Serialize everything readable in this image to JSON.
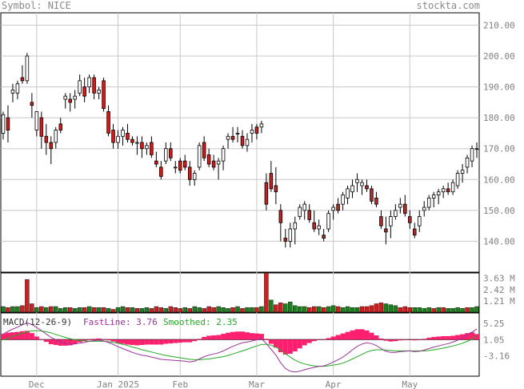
{
  "header": {
    "symbol_label": "Symbol: NICE",
    "brand": "stockta.com"
  },
  "colors": {
    "up_candle": "#ffffff",
    "down_candle": "#cc1f1f",
    "volume_up": "#1e7f1e",
    "volume_down": "#cc1f1f",
    "macd_hist": "#ff1f6f",
    "fast_line": "#993399",
    "smoothed_line": "#22aa22",
    "grid": "#c8c8c8",
    "text_gray": "#808080"
  },
  "chart_data": [
    {
      "type": "candlestick",
      "panel": "price",
      "x_tick_labels": [
        "Dec",
        "Jan 2025",
        "Feb",
        "Mar",
        "Apr",
        "May"
      ],
      "x_tick_positions": [
        7,
        24,
        37,
        53,
        69,
        85
      ],
      "y_tick_labels": [
        "210.00",
        "200.00",
        "190.00",
        "180.00",
        "170.00",
        "160.00",
        "150.00",
        "140.00"
      ],
      "ylim": [
        130,
        214
      ],
      "candles": [
        [
          175,
          182,
          173,
          181
        ],
        [
          180,
          184,
          172,
          176
        ],
        [
          188,
          191,
          185,
          189
        ],
        [
          188,
          192,
          186,
          191
        ],
        [
          193,
          197,
          191,
          192
        ],
        [
          192,
          201,
          191,
          200
        ],
        [
          185,
          188,
          180,
          184
        ],
        [
          176,
          182,
          174,
          182
        ],
        [
          180,
          182,
          170,
          174
        ],
        [
          174,
          178,
          168,
          172
        ],
        [
          172,
          174,
          165,
          170
        ],
        [
          172,
          177,
          170,
          176
        ],
        [
          178,
          180,
          175,
          176
        ],
        [
          186,
          188,
          183,
          187
        ],
        [
          186,
          188,
          182,
          185
        ],
        [
          186,
          189,
          183,
          187
        ],
        [
          188,
          194,
          187,
          192
        ],
        [
          190,
          193,
          185,
          187
        ],
        [
          190,
          194,
          188,
          193
        ],
        [
          193,
          194,
          186,
          188
        ],
        [
          188,
          190,
          186,
          189
        ],
        [
          192,
          193,
          182,
          183
        ],
        [
          182,
          184,
          174,
          175
        ],
        [
          176,
          178,
          170,
          172
        ],
        [
          172,
          176,
          170,
          174
        ],
        [
          174,
          177,
          171,
          176
        ],
        [
          175,
          178,
          172,
          173
        ],
        [
          173,
          174,
          171,
          172
        ],
        [
          172,
          174,
          168,
          172
        ],
        [
          172,
          174,
          167,
          170
        ],
        [
          170,
          172,
          168,
          171
        ],
        [
          172,
          174,
          167,
          168
        ],
        [
          166,
          169,
          164,
          165
        ],
        [
          164,
          166,
          160,
          161
        ],
        [
          166,
          172,
          165,
          170
        ],
        [
          170,
          172,
          166,
          167
        ],
        [
          164,
          166,
          162,
          164
        ],
        [
          166,
          167,
          162,
          163
        ],
        [
          166,
          168,
          163,
          164
        ],
        [
          164,
          166,
          158,
          160
        ],
        [
          160,
          163,
          158,
          162
        ],
        [
          164,
          172,
          163,
          171
        ],
        [
          172,
          174,
          166,
          167
        ],
        [
          168,
          170,
          164,
          165
        ],
        [
          166,
          168,
          163,
          164
        ],
        [
          165,
          167,
          160,
          166
        ],
        [
          166,
          171,
          163,
          170
        ],
        [
          173,
          175,
          170,
          174
        ],
        [
          174,
          177,
          172,
          173
        ],
        [
          175,
          177,
          172,
          175
        ],
        [
          174,
          176,
          170,
          171
        ],
        [
          171,
          175,
          169,
          173
        ],
        [
          175,
          178,
          172,
          176
        ],
        [
          177,
          178,
          173,
          175
        ],
        [
          177,
          179,
          175,
          178
        ],
        [
          159,
          162,
          150,
          152
        ],
        [
          162,
          166,
          156,
          157
        ],
        [
          158,
          164,
          152,
          156
        ],
        [
          150,
          152,
          140,
          146
        ],
        [
          141,
          144,
          138,
          140
        ],
        [
          140,
          146,
          138,
          144
        ],
        [
          144,
          148,
          139,
          146
        ],
        [
          148,
          152,
          147,
          151
        ],
        [
          150,
          153,
          147,
          152
        ],
        [
          150,
          152,
          146,
          147
        ],
        [
          146,
          150,
          143,
          144
        ],
        [
          144,
          147,
          142,
          145
        ],
        [
          142,
          144,
          140,
          141
        ],
        [
          144,
          150,
          143,
          149
        ],
        [
          150,
          152,
          147,
          151
        ],
        [
          152,
          154,
          149,
          150
        ],
        [
          152,
          156,
          150,
          155
        ],
        [
          154,
          158,
          152,
          157
        ],
        [
          156,
          160,
          154,
          158
        ],
        [
          159,
          162,
          156,
          160
        ],
        [
          158,
          160,
          155,
          159
        ],
        [
          158,
          160,
          156,
          157
        ],
        [
          157,
          158,
          152,
          153
        ],
        [
          154,
          156,
          151,
          152
        ],
        [
          148,
          150,
          144,
          145
        ],
        [
          144,
          148,
          139,
          143
        ],
        [
          145,
          150,
          141,
          148
        ],
        [
          148,
          152,
          147,
          150
        ],
        [
          151,
          154,
          149,
          152
        ],
        [
          152,
          155,
          148,
          149
        ],
        [
          148,
          150,
          144,
          146
        ],
        [
          144,
          146,
          141,
          142
        ],
        [
          145,
          150,
          143,
          148
        ],
        [
          150,
          153,
          148,
          151
        ],
        [
          151,
          155,
          150,
          154
        ],
        [
          154,
          156,
          151,
          155
        ],
        [
          155,
          157,
          152,
          156
        ],
        [
          156,
          158,
          154,
          157
        ],
        [
          157,
          159,
          155,
          156
        ],
        [
          156,
          160,
          155,
          159
        ],
        [
          158,
          163,
          157,
          162
        ],
        [
          162,
          165,
          159,
          163
        ],
        [
          164,
          168,
          162,
          167
        ],
        [
          166,
          171,
          164,
          170
        ],
        [
          170,
          172,
          167,
          170
        ]
      ]
    },
    {
      "type": "bar",
      "panel": "volume",
      "y_tick_labels": [
        "3.63 M",
        "2.42 M",
        "1.21 M"
      ],
      "ylim": [
        0,
        4.2
      ],
      "values": [
        0.6,
        0.5,
        0.6,
        0.6,
        0.7,
        3.5,
        0.9,
        0.5,
        0.6,
        0.5,
        0.6,
        0.6,
        0.4,
        0.5,
        0.5,
        0.4,
        0.5,
        0.5,
        0.6,
        0.5,
        0.5,
        0.5,
        0.4,
        0.3,
        0.5,
        0.6,
        0.5,
        0.5,
        0.4,
        0.4,
        0.5,
        0.4,
        0.6,
        0.5,
        0.4,
        0.6,
        0.5,
        0.4,
        0.5,
        0.4,
        0.6,
        0.5,
        0.4,
        0.6,
        0.5,
        0.6,
        0.5,
        0.4,
        0.5,
        0.6,
        0.4,
        0.5,
        0.5,
        0.5,
        0.6,
        4.2,
        1.3,
        0.8,
        1.0,
        0.9,
        1.1,
        0.7,
        0.6,
        0.6,
        0.5,
        0.6,
        0.6,
        0.5,
        0.6,
        0.7,
        0.6,
        0.5,
        0.6,
        0.5,
        0.5,
        0.6,
        0.6,
        0.7,
        0.9,
        1.0,
        0.9,
        0.8,
        0.7,
        0.5,
        0.6,
        0.5,
        0.5,
        0.5,
        0.4,
        0.5,
        0.4,
        0.5,
        0.5,
        0.4,
        0.4,
        0.5,
        0.4,
        0.5,
        0.5,
        0.6
      ],
      "directions": [
        1,
        0,
        1,
        1,
        0,
        0,
        0,
        1,
        0,
        1,
        0,
        1,
        1,
        1,
        0,
        1,
        1,
        0,
        1,
        0,
        1,
        0,
        1,
        0,
        1,
        1,
        0,
        1,
        0,
        1,
        1,
        0,
        0,
        0,
        1,
        0,
        0,
        0,
        1,
        0,
        1,
        1,
        0,
        0,
        0,
        1,
        1,
        1,
        0,
        1,
        0,
        1,
        1,
        0,
        1,
        0,
        1,
        0,
        0,
        1,
        1,
        1,
        1,
        1,
        0,
        0,
        1,
        0,
        1,
        1,
        0,
        1,
        1,
        1,
        1,
        0,
        0,
        0,
        0,
        0,
        1,
        1,
        1,
        0,
        0,
        0,
        1,
        1,
        1,
        1,
        0,
        1,
        0,
        1,
        1,
        1,
        1,
        0,
        1,
        1
      ]
    },
    {
      "type": "line",
      "panel": "macd",
      "label": "MACD(12-26-9)",
      "fast_label": "FastLine: 3.76",
      "smoothed_label": "Smoothed: 2.35",
      "y_tick_labels": [
        "5.25",
        "1.05",
        "-3.16"
      ],
      "y_tick_values": [
        5.25,
        1.05,
        -3.16
      ],
      "ylim": [
        -8.5,
        8
      ],
      "series": [
        {
          "name": "FastLine",
          "values": [
            2.5,
            3.2,
            3.8,
            4.3,
            4.9,
            5.4,
            5.0,
            4.2,
            3.4,
            2.5,
            1.6,
            1.0,
            0.4,
            0.0,
            -0.2,
            -0.1,
            0.1,
            0.3,
            0.6,
            0.8,
            0.9,
            0.7,
            0.3,
            -0.2,
            -0.8,
            -1.3,
            -1.8,
            -2.3,
            -2.7,
            -3.0,
            -3.2,
            -3.5,
            -3.8,
            -4.1,
            -4.2,
            -4.3,
            -4.4,
            -4.5,
            -4.6,
            -4.8,
            -4.6,
            -4.0,
            -3.4,
            -3.0,
            -2.7,
            -2.4,
            -1.9,
            -1.3,
            -0.7,
            -0.2,
            0.2,
            0.4,
            0.7,
            1.0,
            1.3,
            0.0,
            -1.5,
            -3.0,
            -5.0,
            -6.5,
            -7.2,
            -7.4,
            -7.2,
            -6.8,
            -6.5,
            -6.2,
            -5.9,
            -5.8,
            -5.4,
            -4.8,
            -4.2,
            -3.5,
            -2.6,
            -1.6,
            -0.7,
            -0.1,
            0.2,
            0.0,
            -0.5,
            -1.3,
            -2.0,
            -2.3,
            -2.3,
            -2.1,
            -2.0,
            -1.9,
            -2.1,
            -2.0,
            -1.7,
            -1.3,
            -0.9,
            -0.6,
            -0.3,
            0.0,
            0.4,
            0.9,
            1.5,
            2.3,
            3.0,
            3.8
          ]
        },
        {
          "name": "Smoothed",
          "values": [
            1.0,
            1.4,
            1.9,
            2.3,
            2.7,
            3.1,
            3.3,
            3.4,
            3.3,
            3.1,
            2.8,
            2.4,
            2.0,
            1.6,
            1.3,
            1.0,
            0.8,
            0.7,
            0.6,
            0.6,
            0.6,
            0.6,
            0.5,
            0.3,
            0.1,
            -0.2,
            -0.5,
            -0.9,
            -1.2,
            -1.6,
            -1.9,
            -2.2,
            -2.5,
            -2.8,
            -3.1,
            -3.3,
            -3.5,
            -3.7,
            -3.9,
            -4.1,
            -4.2,
            -4.2,
            -4.1,
            -4.0,
            -3.8,
            -3.6,
            -3.4,
            -3.1,
            -2.7,
            -2.3,
            -1.9,
            -1.5,
            -1.0,
            -0.6,
            -0.2,
            -0.2,
            -0.4,
            -0.9,
            -1.7,
            -2.6,
            -3.5,
            -4.3,
            -4.9,
            -5.3,
            -5.6,
            -5.8,
            -5.9,
            -5.9,
            -5.8,
            -5.6,
            -5.4,
            -5.1,
            -4.6,
            -4.0,
            -3.4,
            -2.8,
            -2.2,
            -1.8,
            -1.6,
            -1.6,
            -1.7,
            -1.8,
            -1.9,
            -1.9,
            -1.9,
            -1.9,
            -1.9,
            -1.9,
            -1.9,
            -1.8,
            -1.6,
            -1.4,
            -1.2,
            -0.9,
            -0.6,
            -0.3,
            0.1,
            0.6,
            1.1,
            2.35
          ]
        }
      ]
    }
  ]
}
